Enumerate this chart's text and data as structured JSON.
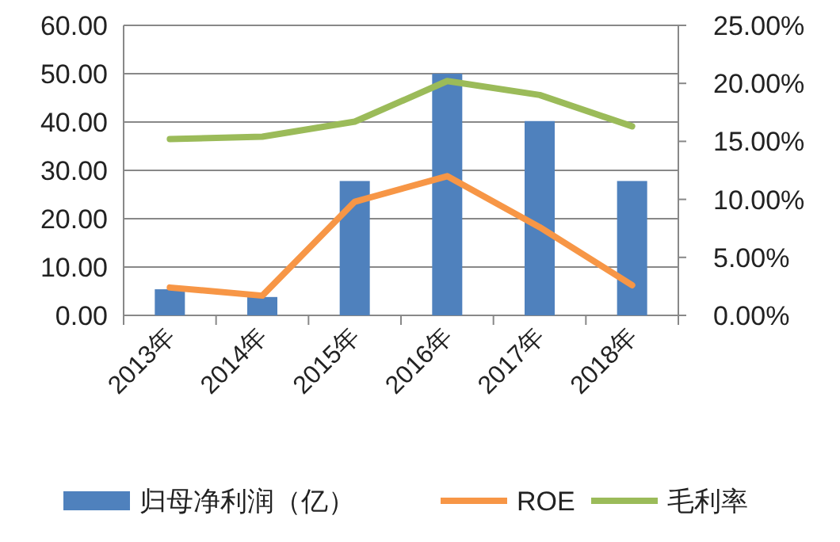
{
  "chart_data": {
    "type": "bar",
    "categories": [
      "2013年",
      "2014年",
      "2015年",
      "2016年",
      "2017年",
      "2018年"
    ],
    "series": [
      {
        "name": "归母净利润（亿）",
        "color": "#4f81bd",
        "values": [
          5.4,
          3.8,
          27.8,
          50.0,
          40.2,
          27.8
        ]
      },
      {
        "name": "ROE",
        "color": "#f79646",
        "type": "line",
        "axis": "y2",
        "values": [
          2.4,
          1.7,
          9.8,
          12.0,
          7.6,
          2.6
        ]
      },
      {
        "name": "毛利率",
        "color": "#9bbb59",
        "type": "line",
        "axis": "y2",
        "values": [
          15.2,
          15.4,
          16.7,
          20.2,
          19.0,
          16.3
        ]
      }
    ],
    "ylim": [
      0,
      60
    ],
    "yticks": [
      {
        "value": 0,
        "label": "0.00"
      },
      {
        "value": 10,
        "label": "10.00"
      },
      {
        "value": 20,
        "label": "20.00"
      },
      {
        "value": 30,
        "label": "30.00"
      },
      {
        "value": 40,
        "label": "40.00"
      },
      {
        "value": 50,
        "label": "50.00"
      },
      {
        "value": 60,
        "label": "60.00"
      }
    ],
    "y2lim": [
      0,
      25
    ],
    "y2ticks": [
      {
        "value": 0,
        "label": "0.00%"
      },
      {
        "value": 5,
        "label": "5.00%"
      },
      {
        "value": 10,
        "label": "10.00%"
      },
      {
        "value": 15,
        "label": "15.00%"
      },
      {
        "value": 20,
        "label": "20.00%"
      },
      {
        "value": 25,
        "label": "25.00%"
      }
    ],
    "grid": "y",
    "legend": "bottom",
    "line_style": "solid"
  }
}
